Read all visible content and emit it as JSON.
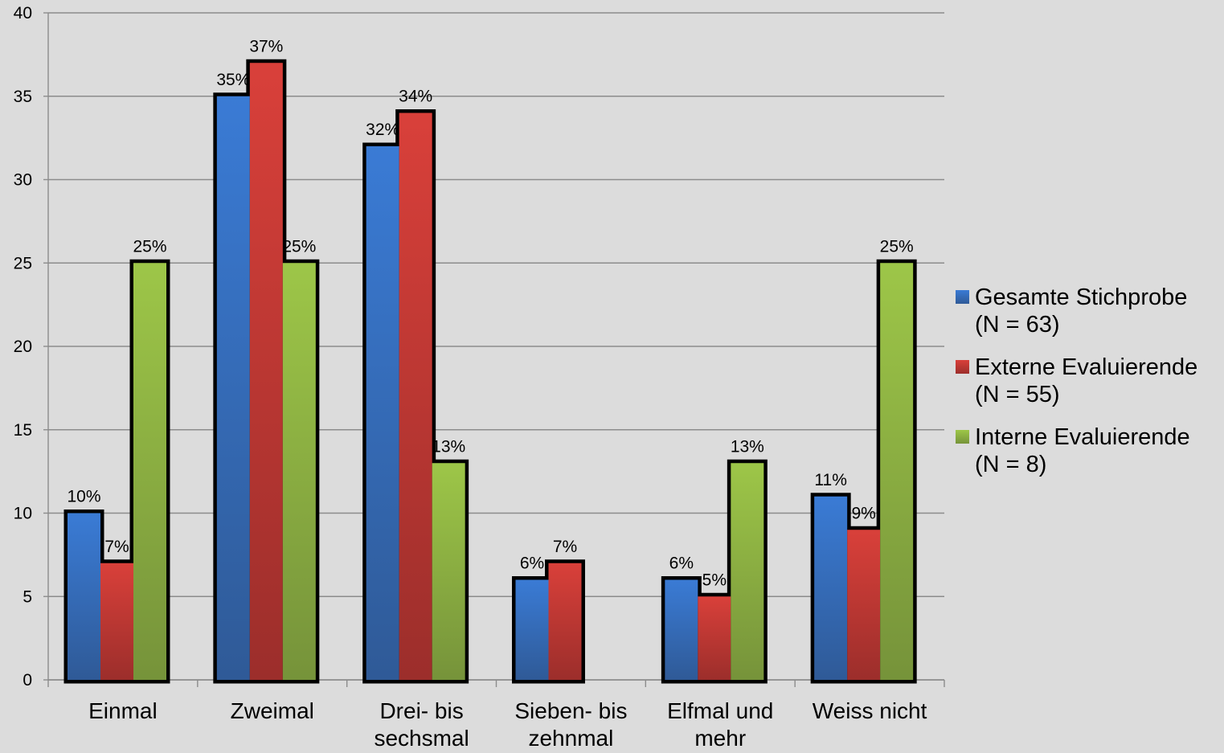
{
  "chart_data": {
    "type": "bar",
    "title": "",
    "xlabel": "",
    "ylabel": "",
    "ylim": [
      0,
      40
    ],
    "y_ticks": [
      0,
      5,
      10,
      15,
      20,
      25,
      30,
      35,
      40
    ],
    "grid": true,
    "legend_position": "right",
    "categories": [
      [
        "Einmal"
      ],
      [
        "Zweimal"
      ],
      [
        "Drei- bis",
        "sechsmal"
      ],
      [
        "Sieben- bis",
        "zehnmal"
      ],
      [
        "Elfmal und",
        "mehr"
      ],
      [
        "Weiss nicht"
      ]
    ],
    "series": [
      {
        "name_lines": [
          "Gesamte Stichprobe",
          "(N = 63)"
        ],
        "color": "#3a7bd5",
        "color_dark": "#2f5a97",
        "values": [
          10,
          35,
          32,
          6,
          6,
          11
        ],
        "labels": [
          "10%",
          "35%",
          "32%",
          "6%",
          "6%",
          "11%"
        ]
      },
      {
        "name_lines": [
          "Externe Evaluierende",
          "(N = 55)"
        ],
        "color": "#d9403a",
        "color_dark": "#9c2e2b",
        "values": [
          7,
          37,
          34,
          7,
          5,
          9
        ],
        "labels": [
          "7%",
          "37%",
          "34%",
          "7%",
          "5%",
          "9%"
        ]
      },
      {
        "name_lines": [
          "Interne Evaluierende",
          "(N = 8)"
        ],
        "color": "#9dc648",
        "color_dark": "#76933a",
        "values": [
          25,
          25,
          13,
          0,
          13,
          25
        ],
        "labels": [
          "25%",
          "25%",
          "13%",
          "",
          "13%",
          "25%"
        ]
      }
    ]
  }
}
